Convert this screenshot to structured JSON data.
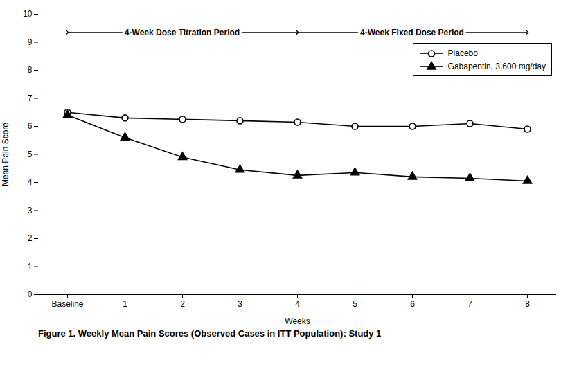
{
  "chart_data": {
    "type": "line",
    "caption": "Figure 1. Weekly Mean Pain Scores (Observed Cases in ITT Population): Study 1",
    "xlabel": "Weeks",
    "ylabel": "Mean Pain Score",
    "categories": [
      "Baseline",
      "1",
      "2",
      "3",
      "4",
      "5",
      "6",
      "7",
      "8"
    ],
    "series": [
      {
        "name": "Placebo",
        "color": "black",
        "marker": "open_circle",
        "values": [
          6.5,
          6.3,
          6.25,
          6.2,
          6.15,
          6.0,
          6.0,
          6.1,
          5.9
        ]
      },
      {
        "name": "Gabapentin, 3,600 mg/day",
        "color": "black",
        "marker": "triangle",
        "values": [
          6.4,
          5.6,
          4.9,
          4.45,
          4.25,
          4.35,
          4.2,
          4.15,
          4.05
        ]
      }
    ],
    "ylim": [
      0,
      10
    ],
    "yticks": [
      0,
      1,
      2,
      3,
      4,
      5,
      6,
      7,
      8,
      9,
      10
    ],
    "grid": false,
    "legend": "upper right",
    "annotations": [
      {
        "text": "4-Week Dose Titration Period",
        "x_start": "Baseline",
        "x_end": "4"
      },
      {
        "text": "4-Week Fixed Dose Period",
        "x_start": "4",
        "x_end": "8"
      }
    ]
  }
}
